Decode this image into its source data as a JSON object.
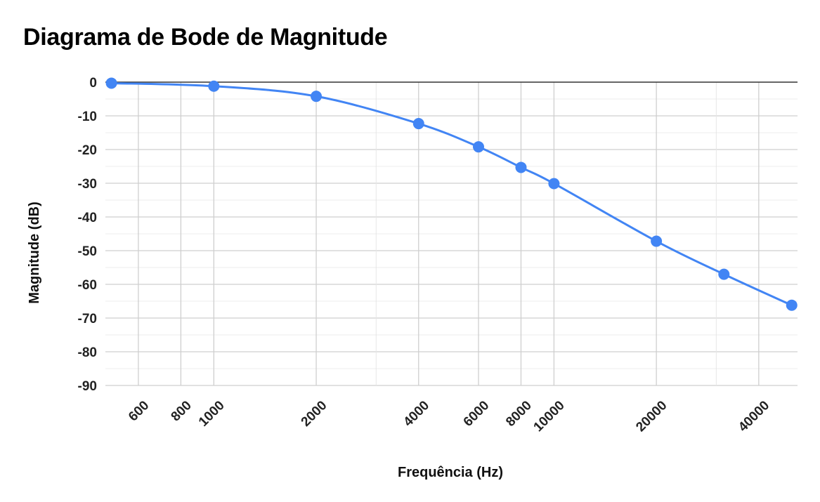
{
  "chart_data": {
    "type": "line",
    "title": "Diagrama de Bode de Magnitude",
    "xlabel": "Frequência (Hz)",
    "ylabel": "Magnitude (dB)",
    "x_scale": "log",
    "xlim": [
      480,
      52000
    ],
    "ylim": [
      -90,
      0
    ],
    "y_ticks": [
      0,
      -10,
      -20,
      -30,
      -40,
      -50,
      -60,
      -70,
      -80,
      -90
    ],
    "x_ticks": [
      600,
      800,
      1000,
      2000,
      4000,
      6000,
      8000,
      10000,
      20000,
      40000
    ],
    "x_minor_gridlines": [
      3000,
      30000
    ],
    "grid": true,
    "series": [
      {
        "color": "#4285f4",
        "x": [
          500,
          1000,
          2000,
          4000,
          6000,
          8000,
          10000,
          20000,
          31600,
          50000
        ],
        "y": [
          -0.3,
          -1.2,
          -4.2,
          -12.3,
          -19.2,
          -25.3,
          -30.1,
          -47.2,
          -57.0,
          -66.2
        ]
      }
    ]
  }
}
